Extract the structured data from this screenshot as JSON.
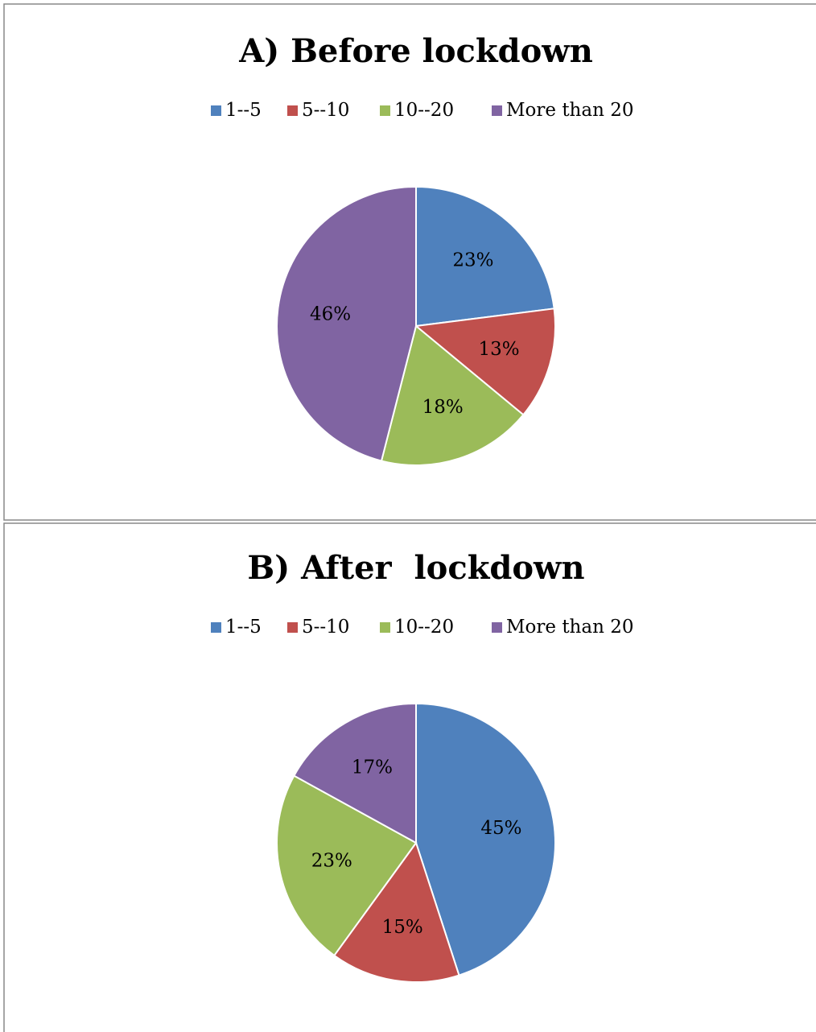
{
  "chart_data": [
    {
      "type": "pie",
      "title": "A) Before lockdown",
      "categories": [
        "1--5",
        "5--10",
        "10--20",
        "More than 20"
      ],
      "values": [
        23,
        13,
        18,
        46
      ],
      "value_labels": [
        "23%",
        "13%",
        "18%",
        "46%"
      ],
      "colors": [
        "#4f81bd",
        "#c0504d",
        "#9bbb59",
        "#8064a2"
      ],
      "legend": "top"
    },
    {
      "type": "pie",
      "title": "B) After  lockdown",
      "categories": [
        "1--5",
        "5--10",
        "10--20",
        "More than 20"
      ],
      "values": [
        45,
        15,
        23,
        17
      ],
      "value_labels": [
        "45%",
        "15%",
        "23%",
        "17%"
      ],
      "colors": [
        "#4f81bd",
        "#c0504d",
        "#9bbb59",
        "#8064a2"
      ],
      "legend": "top"
    }
  ]
}
